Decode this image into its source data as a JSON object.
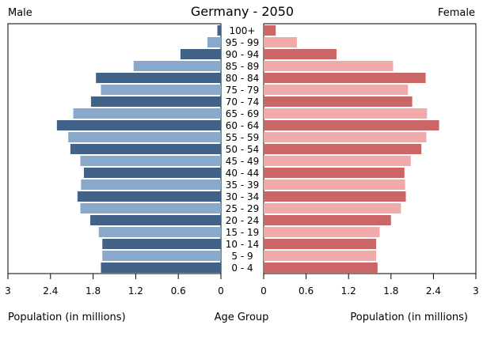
{
  "chart_data": {
    "type": "bar",
    "title": "Germany - 2050",
    "left_label": "Male",
    "right_label": "Female",
    "xlabel_left": "Population (in millions)",
    "xlabel_center": "Age Group",
    "xlabel_right": "Population (in millions)",
    "xlim": [
      0,
      3
    ],
    "left_ticks": [
      "3",
      "2.4",
      "1.8",
      "1.2",
      "0.6",
      "0"
    ],
    "right_ticks": [
      "0",
      "0.6",
      "1.2",
      "1.8",
      "2.4",
      "3"
    ],
    "tick_values": [
      0,
      0.6,
      1.2,
      1.8,
      2.4,
      3
    ],
    "categories": [
      "100+",
      "95 - 99",
      "90 - 94",
      "85 - 89",
      "80 - 84",
      "75 - 79",
      "70 - 74",
      "65 - 69",
      "60 - 64",
      "55 - 59",
      "50 - 54",
      "45 - 49",
      "40 - 44",
      "35 - 39",
      "30 - 34",
      "25 - 29",
      "20 - 24",
      "15 - 19",
      "10 - 14",
      "5 - 9",
      "0 - 4"
    ],
    "series": [
      {
        "name": "Male",
        "values": [
          0.05,
          0.19,
          0.57,
          1.23,
          1.76,
          1.69,
          1.83,
          2.08,
          2.31,
          2.15,
          2.12,
          1.98,
          1.93,
          1.97,
          2.02,
          1.98,
          1.84,
          1.72,
          1.67,
          1.67,
          1.69
        ],
        "colors": [
          "#426388",
          "#88a8cc"
        ]
      },
      {
        "name": "Female",
        "values": [
          0.17,
          0.47,
          1.03,
          1.83,
          2.29,
          2.04,
          2.1,
          2.31,
          2.48,
          2.3,
          2.23,
          2.08,
          1.99,
          2.0,
          2.01,
          1.94,
          1.8,
          1.64,
          1.59,
          1.59,
          1.61
        ],
        "colors": [
          "#cc6666",
          "#f0aaaa"
        ]
      }
    ],
    "axis_color": "#000000",
    "grid": false
  }
}
